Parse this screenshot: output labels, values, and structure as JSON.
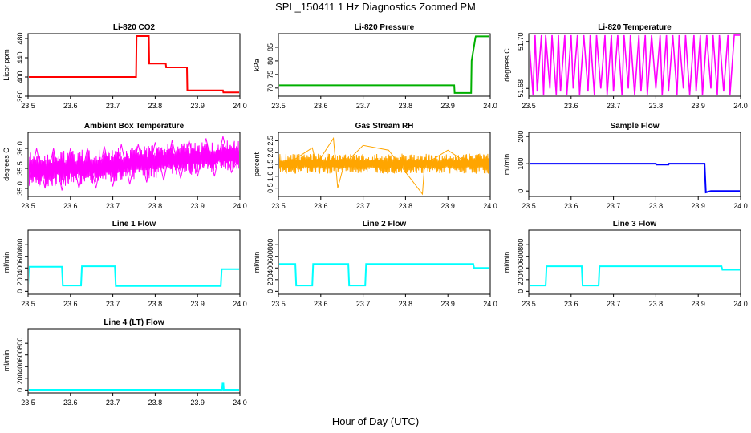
{
  "figure": {
    "title": "SPL_150411  1 Hz Diagnostics Zoomed PM",
    "xlabel": "Hour of Day (UTC)"
  },
  "chart_data": [
    {
      "type": "line",
      "id": "p0",
      "title": "Li-820 CO2",
      "ylabel": "Licor ppm",
      "color": "#ff0000",
      "xlim": [
        23.5,
        24.0
      ],
      "ylim": [
        360,
        490
      ],
      "xticks": [
        23.5,
        23.6,
        23.7,
        23.8,
        23.9,
        24.0
      ],
      "yticks": [
        360,
        400,
        440,
        480
      ],
      "x": [
        23.5,
        23.755,
        23.756,
        23.785,
        23.786,
        23.825,
        23.826,
        23.875,
        23.876,
        23.96,
        23.961,
        24.0
      ],
      "y": [
        400,
        400,
        485,
        485,
        428,
        428,
        420,
        420,
        372,
        372,
        368,
        368
      ]
    },
    {
      "type": "line",
      "id": "p1",
      "title": "Li-820 Pressure",
      "ylabel": "kPa",
      "color": "#00b000",
      "xlim": [
        23.5,
        24.0
      ],
      "ylim": [
        67,
        90
      ],
      "xticks": [
        23.5,
        23.6,
        23.7,
        23.8,
        23.9,
        24.0
      ],
      "yticks": [
        70,
        75,
        80,
        85
      ],
      "x": [
        23.5,
        23.915,
        23.916,
        23.955,
        23.956,
        23.965,
        23.966,
        24.0
      ],
      "y": [
        71,
        71,
        68.2,
        68.2,
        80,
        88.5,
        89,
        89
      ]
    },
    {
      "type": "line",
      "id": "p2",
      "title": "Li-820 Temperature",
      "ylabel": "degrees C",
      "color": "#ff00ff",
      "xlim": [
        23.5,
        24.0
      ],
      "ylim": [
        51.6775,
        51.6975
      ],
      "xticks": [
        23.5,
        23.6,
        23.7,
        23.8,
        23.9,
        24.0
      ],
      "yticks": [
        51.68,
        51.695
      ],
      "x": [
        23.5,
        23.51,
        23.515,
        23.52,
        23.53,
        23.535,
        23.54,
        23.55,
        23.555,
        23.565,
        23.57,
        23.575,
        23.585,
        23.59,
        23.6,
        23.605,
        23.615,
        23.62,
        23.63,
        23.64,
        23.645,
        23.655,
        23.66,
        23.67,
        23.68,
        23.685,
        23.695,
        23.7,
        23.71,
        23.72,
        23.725,
        23.735,
        23.74,
        23.75,
        23.76,
        23.765,
        23.775,
        23.78,
        23.79,
        23.8,
        23.81,
        23.815,
        23.825,
        23.83,
        23.84,
        23.85,
        23.855,
        23.865,
        23.87,
        23.88,
        23.89,
        23.895,
        23.905,
        23.91,
        23.92,
        23.93,
        23.935,
        23.945,
        23.95,
        23.96,
        23.97,
        23.975,
        23.985,
        23.99,
        24.0
      ],
      "y": [
        51.697,
        51.678,
        51.697,
        51.679,
        51.697,
        51.678,
        51.697,
        51.68,
        51.697,
        51.678,
        51.697,
        51.679,
        51.697,
        51.678,
        51.697,
        51.68,
        51.697,
        51.678,
        51.697,
        51.679,
        51.697,
        51.678,
        51.697,
        51.68,
        51.697,
        51.678,
        51.697,
        51.679,
        51.697,
        51.678,
        51.697,
        51.68,
        51.697,
        51.678,
        51.697,
        51.679,
        51.697,
        51.678,
        51.697,
        51.68,
        51.697,
        51.678,
        51.697,
        51.679,
        51.697,
        51.678,
        51.697,
        51.68,
        51.697,
        51.678,
        51.697,
        51.679,
        51.697,
        51.678,
        51.697,
        51.68,
        51.697,
        51.678,
        51.697,
        51.679,
        51.697,
        51.678,
        51.697,
        51.697,
        51.697
      ]
    },
    {
      "type": "line",
      "id": "p3",
      "title": "Ambient Box Temperature",
      "ylabel": "degrees C",
      "color": "#ff00ff",
      "xlim": [
        23.5,
        24.0
      ],
      "ylim": [
        34.8,
        36.4
      ],
      "xticks": [
        23.5,
        23.6,
        23.7,
        23.8,
        23.9,
        24.0
      ],
      "yticks": [
        35.0,
        35.5,
        36.0
      ],
      "x": [
        23.5,
        23.52,
        23.54,
        23.56,
        23.58,
        23.6,
        23.62,
        23.64,
        23.66,
        23.68,
        23.7,
        23.72,
        23.74,
        23.76,
        23.78,
        23.8,
        23.82,
        23.84,
        23.86,
        23.88,
        23.9,
        23.92,
        23.94,
        23.96,
        23.98,
        24.0
      ],
      "y": [
        35.0,
        36.0,
        35.0,
        36.0,
        34.95,
        36.0,
        35.0,
        36.0,
        35.0,
        36.05,
        35.05,
        36.1,
        35.1,
        36.1,
        35.15,
        36.15,
        35.2,
        36.2,
        35.25,
        36.2,
        35.3,
        36.25,
        35.3,
        36.3,
        35.4,
        35.8
      ],
      "band_low": [
        35.05,
        35.05,
        35.07,
        35.1,
        35.15,
        35.2,
        35.25,
        35.3,
        35.35,
        35.4,
        35.45
      ],
      "band_high": [
        35.9,
        35.92,
        35.95,
        35.98,
        36.0,
        36.05,
        36.08,
        36.12,
        36.15,
        36.2,
        36.2
      ]
    },
    {
      "type": "line",
      "id": "p4",
      "title": "Gas Stream RH",
      "ylabel": "percent",
      "color": "#ffa500",
      "xlim": [
        23.5,
        24.0
      ],
      "ylim": [
        0.15,
        2.85
      ],
      "xticks": [
        23.5,
        23.6,
        23.7,
        23.8,
        23.9,
        24.0
      ],
      "yticks": [
        0.5,
        1.0,
        1.5,
        2.0,
        2.5
      ],
      "x": [
        23.5,
        23.52,
        23.58,
        23.59,
        23.63,
        23.64,
        23.655,
        23.7,
        23.76,
        23.84,
        23.845,
        23.9,
        23.95,
        24.0
      ],
      "y": [
        1.5,
        1.5,
        2.2,
        1.5,
        2.6,
        0.5,
        1.5,
        2.3,
        2.1,
        0.25,
        1.5,
        2.1,
        1.5,
        1.5
      ],
      "band_low": [
        1.1,
        1.1
      ],
      "band_high": [
        1.95,
        1.95
      ]
    },
    {
      "type": "line",
      "id": "p5",
      "title": "Sample Flow",
      "ylabel": "ml/min",
      "color": "#0000ff",
      "xlim": [
        23.5,
        24.0
      ],
      "ylim": [
        -20,
        215
      ],
      "xticks": [
        23.5,
        23.6,
        23.7,
        23.8,
        23.9,
        24.0
      ],
      "yticks": [
        0,
        100,
        200
      ],
      "x": [
        23.5,
        23.8,
        23.801,
        23.83,
        23.831,
        23.915,
        23.918,
        23.93,
        24.0
      ],
      "y": [
        100,
        100,
        97,
        97,
        100,
        100,
        -5,
        0,
        0
      ]
    },
    {
      "type": "line",
      "id": "p6",
      "title": "Line 1 Flow",
      "ylabel": "ml/min",
      "color": "#00ffff",
      "xlim": [
        23.5,
        24.0
      ],
      "ylim": [
        -50,
        1050
      ],
      "xticks": [
        23.5,
        23.6,
        23.7,
        23.8,
        23.9,
        24.0
      ],
      "yticks": [
        0,
        200,
        400,
        600,
        800
      ],
      "x": [
        23.5,
        23.502,
        23.58,
        23.582,
        23.625,
        23.627,
        23.705,
        23.707,
        23.955,
        23.957,
        24.0
      ],
      "y": [
        100,
        420,
        420,
        100,
        100,
        430,
        430,
        90,
        90,
        380,
        380
      ]
    },
    {
      "type": "line",
      "id": "p7",
      "title": "Line 2 Flow",
      "ylabel": "ml/min",
      "color": "#00ffff",
      "xlim": [
        23.5,
        24.0
      ],
      "ylim": [
        -50,
        1050
      ],
      "xticks": [
        23.5,
        23.6,
        23.7,
        23.8,
        23.9,
        24.0
      ],
      "yticks": [
        0,
        200,
        400,
        600,
        800
      ],
      "x": [
        23.5,
        23.54,
        23.542,
        23.58,
        23.582,
        23.665,
        23.667,
        23.705,
        23.707,
        23.96,
        23.962,
        24.0
      ],
      "y": [
        470,
        470,
        100,
        100,
        470,
        470,
        100,
        100,
        470,
        470,
        400,
        400
      ]
    },
    {
      "type": "line",
      "id": "p8",
      "title": "Line 3 Flow",
      "ylabel": "ml/min",
      "color": "#00ffff",
      "xlim": [
        23.5,
        24.0
      ],
      "ylim": [
        -50,
        1050
      ],
      "xticks": [
        23.5,
        23.6,
        23.7,
        23.8,
        23.9,
        24.0
      ],
      "yticks": [
        0,
        200,
        400,
        600,
        800
      ],
      "x": [
        23.5,
        23.502,
        23.54,
        23.542,
        23.625,
        23.627,
        23.665,
        23.667,
        23.955,
        23.957,
        24.0
      ],
      "y": [
        400,
        100,
        100,
        430,
        430,
        100,
        100,
        430,
        430,
        370,
        370
      ]
    },
    {
      "type": "line",
      "id": "p9",
      "title": "Line 4 (LT) Flow",
      "ylabel": "ml/min",
      "color": "#00ffff",
      "xlim": [
        23.5,
        24.0
      ],
      "ylim": [
        -50,
        1050
      ],
      "xticks": [
        23.5,
        23.6,
        23.7,
        23.8,
        23.9,
        24.0
      ],
      "yticks": [
        0,
        200,
        400,
        600,
        800
      ],
      "x": [
        23.5,
        23.958,
        23.959,
        23.961,
        23.962,
        24.0
      ],
      "y": [
        5,
        5,
        110,
        110,
        5,
        5
      ]
    }
  ]
}
